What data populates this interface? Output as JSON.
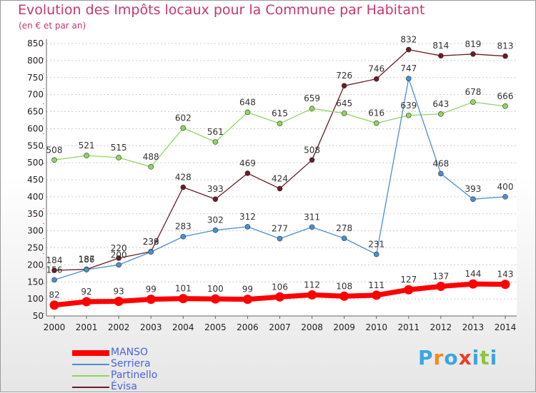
{
  "chart_data": {
    "type": "line",
    "title": "Evolution des Impôts locaux pour la Commune par Habitant",
    "subtitle": "(en € et par an)",
    "x": [
      "2000",
      "2001",
      "2002",
      "2003",
      "2004",
      "2005",
      "2006",
      "2007",
      "2008",
      "2009",
      "2010",
      "2011",
      "2012",
      "2013",
      "2014"
    ],
    "ylim": [
      50,
      850
    ],
    "yticks": [
      50,
      100,
      150,
      200,
      250,
      300,
      350,
      400,
      450,
      500,
      550,
      600,
      650,
      700,
      750,
      800,
      850
    ],
    "grid": "horizontal dashed",
    "legend_position": "bottom-left",
    "series": [
      {
        "name": "MANSO",
        "color": "#ff0000",
        "values": [
          82,
          92,
          93,
          99,
          101,
          100,
          99,
          106,
          112,
          108,
          111,
          127,
          137,
          144,
          143
        ]
      },
      {
        "name": "Serriera",
        "color": "#4a8fd0",
        "values": [
          156,
          186,
          200,
          238,
          283,
          302,
          312,
          277,
          311,
          278,
          231,
          747,
          468,
          393,
          400
        ]
      },
      {
        "name": "Partinello",
        "color": "#8ed65e",
        "values": [
          508,
          521,
          515,
          488,
          602,
          561,
          648,
          615,
          659,
          645,
          616,
          639,
          643,
          678,
          666
        ]
      },
      {
        "name": "Évisa",
        "color": "#6b1c26",
        "values": [
          184,
          187,
          220,
          239,
          428,
          393,
          469,
          424,
          508,
          726,
          746,
          832,
          814,
          819,
          813
        ]
      }
    ]
  },
  "logo": {
    "text": "Proxiti",
    "letters": [
      "P",
      "r",
      "o",
      "x",
      "i",
      "t",
      "i"
    ],
    "colors": [
      "#3aa6e0",
      "#f08a1c",
      "#3aa6e0",
      "#e8402a",
      "#3aa6e0",
      "#8cc63f",
      "#3aa6e0"
    ]
  }
}
